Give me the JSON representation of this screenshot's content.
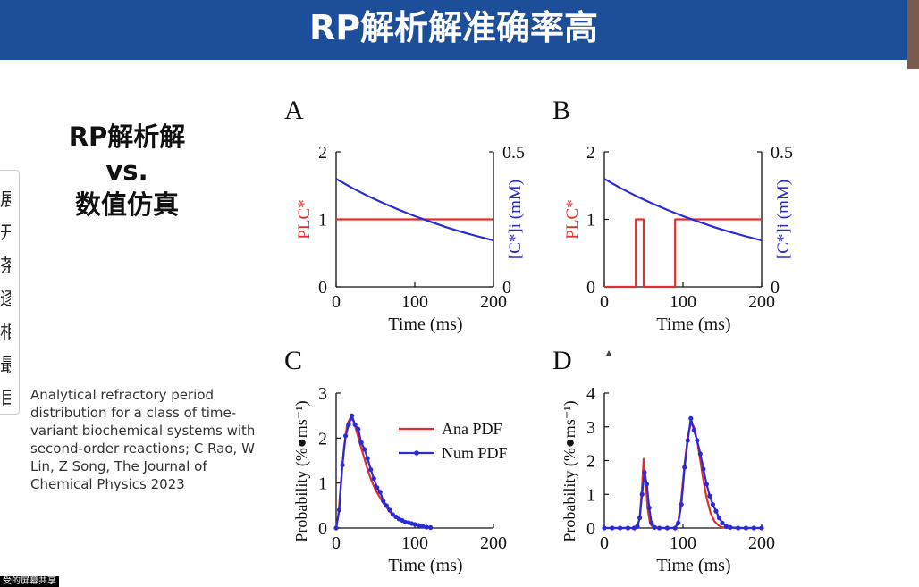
{
  "header": {
    "title": "RP解析解准确率高"
  },
  "side_panel": {
    "chars": [
      "展",
      "开",
      "茶",
      "逐",
      "相",
      "最",
      "目"
    ]
  },
  "subtitle": {
    "lines": [
      "RP解析解",
      "vs.",
      "数值仿真"
    ]
  },
  "citation": "Analytical refractory period distribution for a class of time-variant biochemical systems with second-order reactions; C Rao, W Lin, Z Song, The Journal of Chemical Physics 2023",
  "screen_share_label": "受的屏幕共享",
  "colors": {
    "header": "#1d4e9a",
    "red": "#e0302e",
    "blue": "#2b2bd6"
  },
  "chart_data": [
    {
      "panel": "A",
      "type": "line",
      "xlabel": "Time (ms)",
      "ylabel_left": "PLC*",
      "ylabel_right": "[C*]i (mM)",
      "xlim": [
        0,
        200
      ],
      "ylim_left": [
        0,
        2
      ],
      "ylim_right": [
        0,
        0.5
      ],
      "xticks": [
        "0",
        "100",
        "200"
      ],
      "yticks_left": [
        "0",
        "1",
        "2"
      ],
      "yticks_right": [
        "0",
        "0.5"
      ],
      "series": [
        {
          "axis": "left",
          "color": "red",
          "x": [
            0,
            200
          ],
          "y": [
            1,
            1
          ]
        },
        {
          "axis": "right",
          "color": "blue",
          "x": [
            0,
            20,
            40,
            60,
            80,
            100,
            120,
            140,
            160,
            180,
            200
          ],
          "y": [
            0.4,
            0.367,
            0.337,
            0.31,
            0.285,
            0.262,
            0.241,
            0.221,
            0.203,
            0.187,
            0.172
          ]
        }
      ]
    },
    {
      "panel": "B",
      "type": "line",
      "xlabel": "Time (ms)",
      "ylabel_left": "PLC*",
      "ylabel_right": "[C*]i (mM)",
      "xlim": [
        0,
        200
      ],
      "ylim_left": [
        0,
        2
      ],
      "ylim_right": [
        0,
        0.5
      ],
      "xticks": [
        "0",
        "100",
        "200"
      ],
      "yticks_left": [
        "0",
        "1",
        "2"
      ],
      "yticks_right": [
        "0",
        "0.5"
      ],
      "series": [
        {
          "axis": "left",
          "color": "red",
          "x": [
            0,
            40,
            40,
            50,
            50,
            90,
            90,
            200
          ],
          "y": [
            0,
            0,
            1,
            1,
            0,
            0,
            1,
            1
          ]
        },
        {
          "axis": "right",
          "color": "blue",
          "x": [
            0,
            20,
            40,
            60,
            80,
            100,
            120,
            140,
            160,
            180,
            200
          ],
          "y": [
            0.4,
            0.367,
            0.337,
            0.31,
            0.285,
            0.262,
            0.241,
            0.221,
            0.203,
            0.187,
            0.172
          ]
        }
      ]
    },
    {
      "panel": "C",
      "type": "line",
      "xlabel": "Time (ms)",
      "ylabel": "Probability (%●ms⁻¹)",
      "xlim": [
        0,
        200
      ],
      "ylim": [
        0,
        3
      ],
      "xticks": [
        "0",
        "100",
        "200"
      ],
      "yticks": [
        "0",
        "1",
        "2",
        "3"
      ],
      "legend": [
        "Ana PDF",
        "Num PDF"
      ],
      "series": [
        {
          "name": "Ana PDF",
          "color": "red",
          "x": [
            0,
            3,
            6,
            10,
            14,
            18,
            22,
            26,
            30,
            35,
            40,
            45,
            50,
            60,
            70,
            80,
            90,
            100,
            110,
            120
          ],
          "y": [
            0,
            0.3,
            1.0,
            1.8,
            2.3,
            2.45,
            2.38,
            2.15,
            1.9,
            1.6,
            1.3,
            1.05,
            0.85,
            0.55,
            0.33,
            0.2,
            0.11,
            0.06,
            0.03,
            0.01
          ]
        },
        {
          "name": "Num PDF",
          "color": "blue",
          "marker": "circle",
          "x": [
            0,
            4,
            8,
            12,
            16,
            20,
            24,
            28,
            32,
            36,
            40,
            44,
            48,
            52,
            56,
            60,
            64,
            68,
            72,
            76,
            80,
            84,
            88,
            92,
            96,
            100,
            105,
            110,
            115,
            120
          ],
          "y": [
            0,
            0.4,
            1.4,
            2.05,
            2.3,
            2.5,
            2.3,
            2.2,
            1.9,
            1.75,
            1.55,
            1.3,
            1.1,
            0.9,
            0.8,
            0.6,
            0.5,
            0.4,
            0.3,
            0.25,
            0.2,
            0.17,
            0.13,
            0.12,
            0.1,
            0.08,
            0.06,
            0.04,
            0.02,
            0.01
          ]
        }
      ]
    },
    {
      "panel": "D",
      "type": "line",
      "xlabel": "Time (ms)",
      "ylabel": "Probability (%●ms⁻¹)",
      "xlim": [
        0,
        200
      ],
      "ylim": [
        0,
        4
      ],
      "xticks": [
        "0",
        "100",
        "200"
      ],
      "yticks": [
        "0",
        "1",
        "2",
        "3",
        "4"
      ],
      "series": [
        {
          "color": "red",
          "x": [
            0,
            38,
            42,
            45,
            48,
            50,
            52,
            55,
            58,
            62,
            90,
            94,
            98,
            102,
            106,
            110,
            114,
            118,
            122,
            126,
            130,
            135,
            140,
            145,
            150,
            155,
            200
          ],
          "y": [
            0,
            0,
            0.05,
            0.3,
            1.2,
            2.05,
            1.6,
            0.6,
            0.15,
            0,
            0,
            0.2,
            0.9,
            1.9,
            2.7,
            3.1,
            3.0,
            2.6,
            2.0,
            1.4,
            0.9,
            0.45,
            0.2,
            0.08,
            0.02,
            0,
            0
          ]
        },
        {
          "color": "blue",
          "marker": "circle",
          "x": [
            0,
            10,
            20,
            30,
            38,
            42,
            45,
            48,
            51,
            54,
            57,
            60,
            64,
            70,
            80,
            90,
            94,
            98,
            102,
            106,
            110,
            114,
            118,
            122,
            126,
            130,
            134,
            138,
            142,
            146,
            150,
            155,
            160,
            170,
            180,
            190,
            200
          ],
          "y": [
            0,
            0,
            0,
            0,
            0,
            0.05,
            0.3,
            1.0,
            1.65,
            1.3,
            0.6,
            0.15,
            0.02,
            0,
            0,
            0,
            0.15,
            0.7,
            1.8,
            2.6,
            3.25,
            2.9,
            2.6,
            2.2,
            1.75,
            1.3,
            0.95,
            0.7,
            0.5,
            0.3,
            0.15,
            0.05,
            0.02,
            0,
            0,
            0,
            0
          ]
        }
      ]
    }
  ]
}
